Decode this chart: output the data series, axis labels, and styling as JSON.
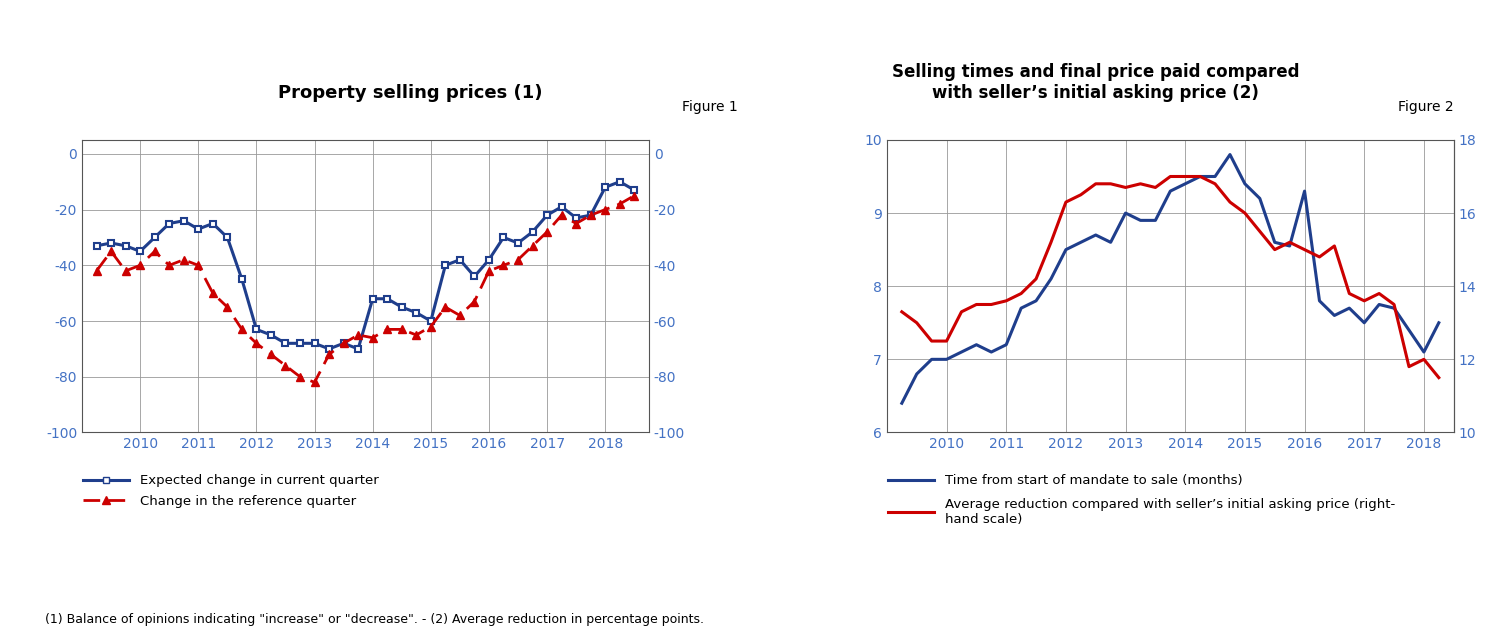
{
  "fig1_title": "Property selling prices",
  "fig1_title_suffix": " (1)",
  "fig1_label": "Figure 1",
  "fig2_title_line1": "Selling times and final price paid compared",
  "fig2_title_line2": "with seller’s initial asking price",
  "fig2_title_suffix": " (2)",
  "fig2_label": "Figure 2",
  "footnote": "(1) Balance of opinions indicating \"increase\" or \"decrease\". - (2) Average reduction in percentage points.",
  "fig1_blue_x": [
    2009.25,
    2009.5,
    2009.75,
    2010.0,
    2010.25,
    2010.5,
    2010.75,
    2011.0,
    2011.25,
    2011.5,
    2011.75,
    2012.0,
    2012.25,
    2012.5,
    2012.75,
    2013.0,
    2013.25,
    2013.5,
    2013.75,
    2014.0,
    2014.25,
    2014.5,
    2014.75,
    2015.0,
    2015.25,
    2015.5,
    2015.75,
    2016.0,
    2016.25,
    2016.5,
    2016.75,
    2017.0,
    2017.25,
    2017.5,
    2017.75,
    2018.0,
    2018.25,
    2018.5
  ],
  "fig1_blue_y": [
    -33,
    -32,
    -33,
    -35,
    -30,
    -25,
    -24,
    -27,
    -25,
    -30,
    -45,
    -63,
    -65,
    -68,
    -68,
    -68,
    -70,
    -68,
    -70,
    -52,
    -52,
    -55,
    -57,
    -60,
    -40,
    -38,
    -44,
    -38,
    -30,
    -32,
    -28,
    -22,
    -19,
    -23,
    -22,
    -12,
    -10,
    -13
  ],
  "fig1_red_x": [
    2009.25,
    2009.5,
    2009.75,
    2010.0,
    2010.25,
    2010.5,
    2010.75,
    2011.0,
    2011.25,
    2011.5,
    2011.75,
    2012.0,
    2012.25,
    2012.5,
    2012.75,
    2013.0,
    2013.25,
    2013.5,
    2013.75,
    2014.0,
    2014.25,
    2014.5,
    2014.75,
    2015.0,
    2015.25,
    2015.5,
    2015.75,
    2016.0,
    2016.25,
    2016.5,
    2016.75,
    2017.0,
    2017.25,
    2017.5,
    2017.75,
    2018.0,
    2018.25,
    2018.5
  ],
  "fig1_red_y": [
    -42,
    -35,
    -42,
    -40,
    -35,
    -40,
    -38,
    -40,
    -50,
    -55,
    -63,
    -68,
    -72,
    -76,
    -80,
    -82,
    -72,
    -68,
    -65,
    -66,
    -63,
    -63,
    -65,
    -62,
    -55,
    -58,
    -53,
    -42,
    -40,
    -38,
    -33,
    -28,
    -22,
    -25,
    -22,
    -20,
    -18,
    -15
  ],
  "fig2_blue_x": [
    2009.25,
    2009.5,
    2009.75,
    2010.0,
    2010.25,
    2010.5,
    2010.75,
    2011.0,
    2011.25,
    2011.5,
    2011.75,
    2012.0,
    2012.25,
    2012.5,
    2012.75,
    2013.0,
    2013.25,
    2013.5,
    2013.75,
    2014.0,
    2014.25,
    2014.5,
    2014.75,
    2015.0,
    2015.25,
    2015.5,
    2015.75,
    2016.0,
    2016.25,
    2016.5,
    2016.75,
    2017.0,
    2017.25,
    2017.5,
    2017.75,
    2018.0,
    2018.25
  ],
  "fig2_blue_y": [
    6.4,
    6.8,
    7.0,
    7.0,
    7.1,
    7.2,
    7.1,
    7.2,
    7.7,
    7.8,
    8.1,
    8.5,
    8.6,
    8.7,
    8.6,
    9.0,
    8.9,
    8.9,
    9.3,
    9.4,
    9.5,
    9.5,
    9.8,
    9.4,
    9.2,
    8.6,
    8.55,
    9.3,
    7.8,
    7.6,
    7.7,
    7.5,
    7.75,
    7.7,
    7.4,
    7.1,
    7.5
  ],
  "fig2_red_x": [
    2009.25,
    2009.5,
    2009.75,
    2010.0,
    2010.25,
    2010.5,
    2010.75,
    2011.0,
    2011.25,
    2011.5,
    2011.75,
    2012.0,
    2012.25,
    2012.5,
    2012.75,
    2013.0,
    2013.25,
    2013.5,
    2013.75,
    2014.0,
    2014.25,
    2014.5,
    2014.75,
    2015.0,
    2015.25,
    2015.5,
    2015.75,
    2016.0,
    2016.25,
    2016.5,
    2016.75,
    2017.0,
    2017.25,
    2017.5,
    2017.75,
    2018.0,
    2018.25
  ],
  "fig2_red_y": [
    13.3,
    13.0,
    12.5,
    12.5,
    13.3,
    13.5,
    13.5,
    13.6,
    13.8,
    14.2,
    15.2,
    16.3,
    16.5,
    16.8,
    16.8,
    16.7,
    16.8,
    16.7,
    17.0,
    17.0,
    17.0,
    16.8,
    16.3,
    16.0,
    15.5,
    15.0,
    15.2,
    15.0,
    14.8,
    15.1,
    13.8,
    13.6,
    13.8,
    13.5,
    11.8,
    12.0,
    11.5
  ],
  "blue_color": "#1F3E8C",
  "red_color": "#CC0000",
  "grid_color": "#999999",
  "tick_color": "#4472C4",
  "text_color": "#000000",
  "background_color": "#FFFFFF",
  "fig1_yticks": [
    0,
    -20,
    -40,
    -60,
    -80,
    -100
  ],
  "fig1_ylim": [
    -100,
    5
  ],
  "fig1_xlim": [
    2009.0,
    2018.75
  ],
  "fig1_xticks": [
    2010,
    2011,
    2012,
    2013,
    2014,
    2015,
    2016,
    2017,
    2018
  ],
  "fig2_ylim": [
    6,
    10
  ],
  "fig2_yticks": [
    6,
    7,
    8,
    9,
    10
  ],
  "fig2_ylim_r": [
    10,
    18
  ],
  "fig2_yticks_r": [
    10,
    12,
    14,
    16,
    18
  ],
  "fig2_xlim": [
    2009.0,
    2018.5
  ],
  "fig2_xticks": [
    2010,
    2011,
    2012,
    2013,
    2014,
    2015,
    2016,
    2017,
    2018
  ]
}
